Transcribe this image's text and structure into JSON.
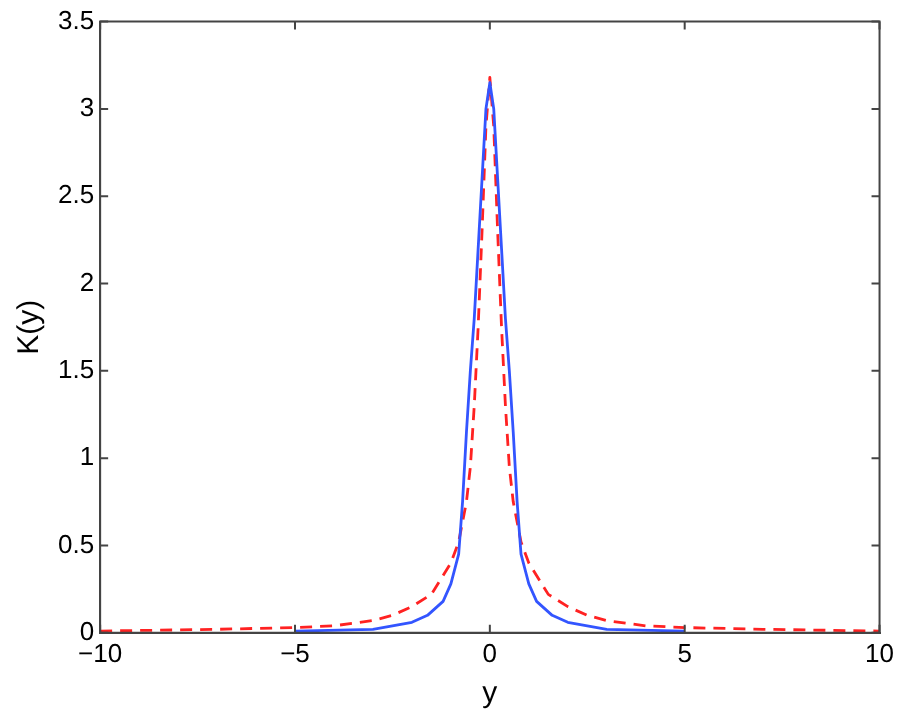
{
  "chart_data": {
    "type": "line",
    "xlabel": "y",
    "ylabel": "K(y)",
    "xlim": [
      -10,
      10
    ],
    "ylim": [
      0,
      3.5
    ],
    "xticks": [
      -10,
      -5,
      0,
      5,
      10
    ],
    "yticks": [
      0,
      0.5,
      1,
      1.5,
      2,
      2.5,
      3,
      3.5
    ],
    "grid": false,
    "legend": false,
    "marker": "none",
    "series": [
      {
        "color": "#3355ff",
        "line_style": "solid",
        "x": [
          -5,
          -3,
          -2,
          -1.6,
          -1.2,
          -1,
          -0.8,
          -0.7,
          -0.6,
          -0.5,
          -0.4,
          -0.3,
          -0.2,
          -0.1,
          0,
          0.1,
          0.2,
          0.3,
          0.4,
          0.5,
          0.6,
          0.7,
          0.8,
          1,
          1.2,
          1.6,
          2,
          3,
          5
        ],
        "values": [
          0.01,
          0.02,
          0.06,
          0.1,
          0.18,
          0.28,
          0.45,
          0.75,
          1.15,
          1.5,
          1.8,
          2.2,
          2.6,
          3,
          3.15,
          3,
          2.6,
          2.2,
          1.8,
          1.5,
          1.15,
          0.75,
          0.45,
          0.28,
          0.18,
          0.1,
          0.06,
          0.02,
          0.01
        ]
      },
      {
        "color": "#ff2222",
        "line_style": "dashed",
        "x": [
          -10,
          -7,
          -5,
          -4,
          -3,
          -2.5,
          -2,
          -1.5,
          -1,
          -0.8,
          -0.6,
          -0.5,
          -0.4,
          -0.3,
          -0.2,
          -0.1,
          0,
          0.1,
          0.2,
          0.3,
          0.4,
          0.5,
          0.6,
          0.8,
          1,
          1.5,
          2,
          2.5,
          3,
          4,
          5,
          7,
          10
        ],
        "values": [
          0.01,
          0.02,
          0.03,
          0.04,
          0.07,
          0.1,
          0.15,
          0.22,
          0.4,
          0.52,
          0.75,
          0.95,
          1.3,
          1.75,
          2.3,
          2.9,
          3.18,
          2.9,
          2.3,
          1.75,
          1.3,
          0.95,
          0.75,
          0.52,
          0.4,
          0.22,
          0.15,
          0.1,
          0.07,
          0.04,
          0.03,
          0.02,
          0.01
        ]
      }
    ]
  }
}
